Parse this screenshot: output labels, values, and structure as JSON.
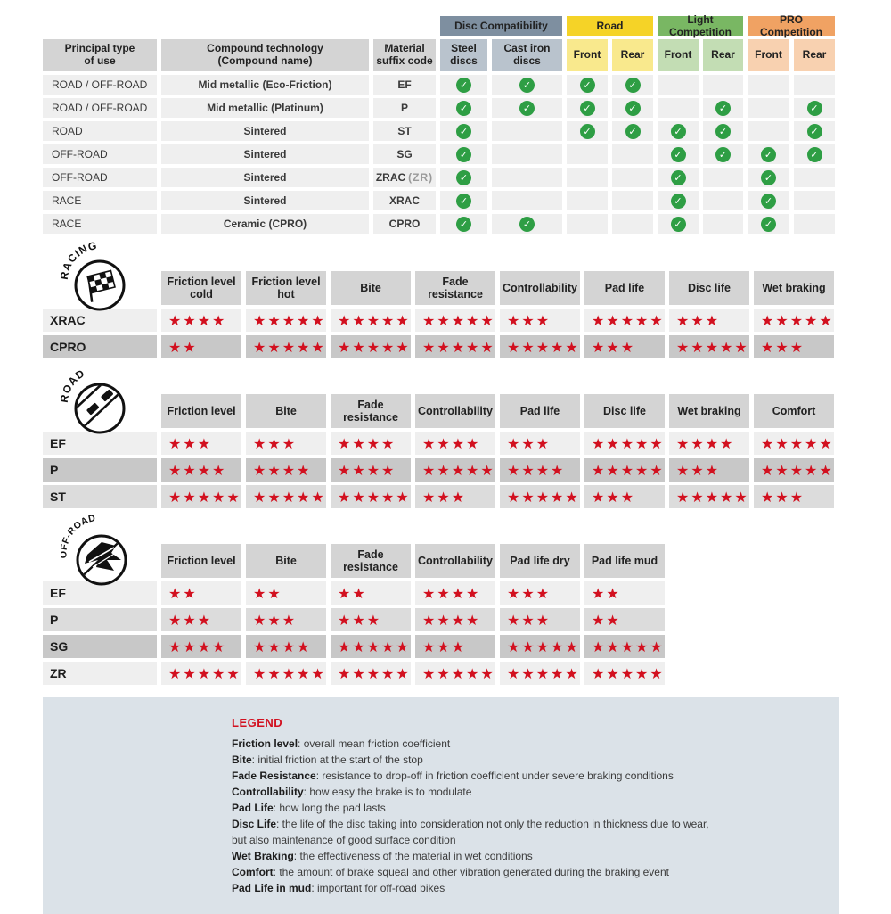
{
  "colors": {
    "star_red": "#d2101f",
    "check_green": "#2e9e44",
    "disc_group": "#7e8fa0",
    "disc_sub": "#b9c3cd",
    "road_group": "#f5d327",
    "road_sub": "#f9e98d",
    "light_comp_group": "#79b763",
    "light_comp_sub": "#c3ddb4",
    "pro_comp_group": "#f0a263",
    "pro_comp_sub": "#f8d1b0",
    "header_gray": "#d4d4d4",
    "row_light": "#efefef",
    "row_medium": "#dcdcdc",
    "row_dark": "#c8c8c8",
    "legend_bg": "#dbe2e8"
  },
  "compat_table": {
    "col_headers": [
      "Principal type\nof use",
      "Compound technology\n(Compound name)",
      "Material\nsuffix code"
    ],
    "groups": [
      {
        "label": "Disc Compatibility"
      },
      {
        "label": "Road"
      },
      {
        "label": "Light Competition"
      },
      {
        "label": "PRO Competition"
      }
    ],
    "sub_labels": [
      "Steel\ndiscs",
      "Cast iron\ndiscs",
      "Front",
      "Rear",
      "Front",
      "Rear",
      "Front",
      "Rear"
    ],
    "rows": [
      {
        "use": "ROAD / OFF-ROAD",
        "compound": "Mid metallic (Eco-Friction)",
        "code": "EF",
        "code_suffix": "",
        "checks": [
          1,
          1,
          1,
          1,
          0,
          0,
          0,
          0
        ]
      },
      {
        "use": "ROAD / OFF-ROAD",
        "compound": "Mid metallic (Platinum)",
        "code": "P",
        "code_suffix": "",
        "checks": [
          1,
          1,
          1,
          1,
          0,
          1,
          0,
          1
        ]
      },
      {
        "use": "ROAD",
        "compound": "Sintered",
        "code": "ST",
        "code_suffix": "",
        "checks": [
          1,
          0,
          1,
          1,
          1,
          1,
          0,
          1
        ]
      },
      {
        "use": "OFF-ROAD",
        "compound": "Sintered",
        "code": "SG",
        "code_suffix": "",
        "checks": [
          1,
          0,
          0,
          0,
          1,
          1,
          1,
          1
        ]
      },
      {
        "use": "OFF-ROAD",
        "compound": "Sintered",
        "code": "ZRAC",
        "code_suffix": "(ZR)",
        "checks": [
          1,
          0,
          0,
          0,
          1,
          0,
          1,
          0
        ]
      },
      {
        "use": "RACE",
        "compound": "Sintered",
        "code": "XRAC",
        "code_suffix": "",
        "checks": [
          1,
          0,
          0,
          0,
          1,
          0,
          1,
          0
        ]
      },
      {
        "use": "RACE",
        "compound": "Ceramic (CPRO)",
        "code": "CPRO",
        "code_suffix": "",
        "checks": [
          1,
          1,
          0,
          0,
          1,
          0,
          1,
          0
        ]
      }
    ]
  },
  "rating_sections": [
    {
      "icon": "racing-flag-icon",
      "icon_label": "RACING",
      "columns": [
        "Friction level cold",
        "Friction level hot",
        "Bite",
        "Fade resistance",
        "Controllability",
        "Pad life",
        "Disc life",
        "Wet braking"
      ],
      "rows": [
        {
          "code": "XRAC",
          "shade": "light",
          "ratings": [
            4,
            5,
            5,
            5,
            3,
            5,
            3,
            5
          ]
        },
        {
          "code": "CPRO",
          "shade": "dark",
          "ratings": [
            2,
            5,
            5,
            5,
            5,
            3,
            5,
            3
          ]
        }
      ]
    },
    {
      "icon": "road-icon",
      "icon_label": "ROAD",
      "columns": [
        "Friction level",
        "Bite",
        "Fade resistance",
        "Controllability",
        "Pad life",
        "Disc life",
        "Wet braking",
        "Comfort"
      ],
      "rows": [
        {
          "code": "EF",
          "shade": "light",
          "ratings": [
            3,
            3,
            4,
            4,
            3,
            5,
            4,
            5
          ]
        },
        {
          "code": "P",
          "shade": "dark",
          "ratings": [
            4,
            4,
            4,
            5,
            4,
            5,
            3,
            5
          ]
        },
        {
          "code": "ST",
          "shade": "medium",
          "ratings": [
            5,
            5,
            5,
            3,
            5,
            3,
            5,
            3
          ]
        }
      ]
    },
    {
      "icon": "offroad-icon",
      "icon_label": "OFF-ROAD",
      "columns": [
        "Friction level",
        "Bite",
        "Fade resistance",
        "Controllability",
        "Pad life dry",
        "Pad life mud"
      ],
      "rows": [
        {
          "code": "EF",
          "shade": "light",
          "ratings": [
            2,
            2,
            2,
            4,
            3,
            2
          ]
        },
        {
          "code": "P",
          "shade": "medium",
          "ratings": [
            3,
            3,
            3,
            4,
            3,
            2
          ]
        },
        {
          "code": "SG",
          "shade": "dark",
          "ratings": [
            4,
            4,
            5,
            3,
            5,
            5
          ]
        },
        {
          "code": "ZR",
          "shade": "light",
          "ratings": [
            5,
            5,
            5,
            5,
            5,
            5
          ]
        }
      ]
    }
  ],
  "legend": {
    "title": "LEGEND",
    "items": [
      {
        "term": "Friction level",
        "desc": "overall mean friction coefficient"
      },
      {
        "term": "Bite",
        "desc": "initial friction at the start of the stop"
      },
      {
        "term": "Fade Resistance",
        "desc": "resistance to drop-off in friction coefficient under severe braking conditions"
      },
      {
        "term": "Controllability",
        "desc": "how easy the brake is to modulate"
      },
      {
        "term": "Pad Life",
        "desc": "how long the pad lasts"
      },
      {
        "term": "Disc Life",
        "desc": "the life of the disc taking into consideration not only the reduction in thickness due to wear,"
      },
      {
        "term": "",
        "desc": "but also maintenance of good surface condition"
      },
      {
        "term": "Wet Braking",
        "desc": "the effectiveness of the material in wet conditions"
      },
      {
        "term": "Comfort",
        "desc": "the amount of brake squeal and other vibration generated during the braking event"
      },
      {
        "term": "Pad Life in mud",
        "desc": "important for off-road bikes"
      }
    ]
  }
}
